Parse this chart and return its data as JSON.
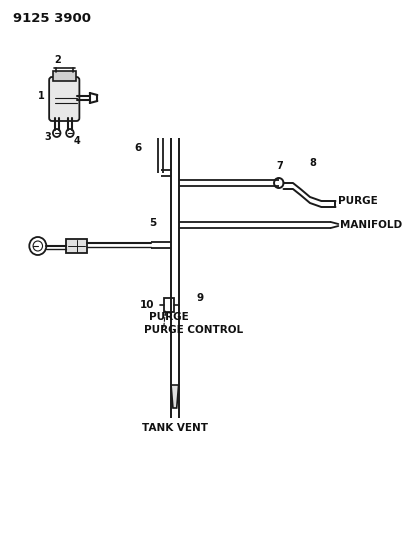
{
  "title": "9125 3900",
  "bg_color": "#ffffff",
  "line_color": "#1a1a1a",
  "text_color": "#111111",
  "fig_width": 4.11,
  "fig_height": 5.33,
  "dpi": 100,
  "labels": {
    "title": "9125 3900",
    "purge_upper": "PURGE",
    "manifold": "MANIFOLD",
    "purge_lower": "PURGE",
    "purge_control": "PURGE CONTROL",
    "tank_vent": "TANK VENT",
    "num1": "1",
    "num2": "2",
    "num3": "3",
    "num4": "4",
    "num5": "5",
    "num6": "6",
    "num7": "7",
    "num8": "8",
    "num9": "9",
    "num10": "10"
  }
}
